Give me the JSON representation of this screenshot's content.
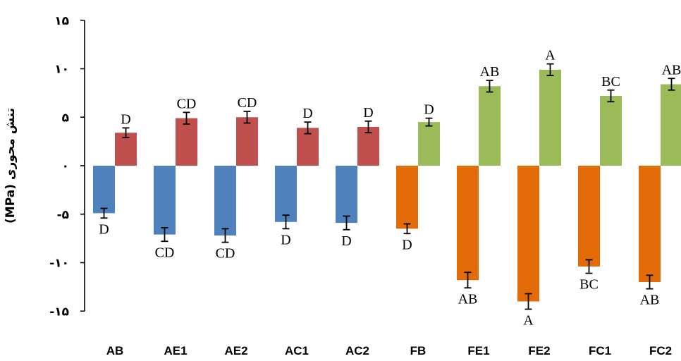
{
  "chart_data": {
    "type": "bar",
    "ylabel": "تنش محوری (MPa)",
    "ylim": [
      -15,
      15
    ],
    "y_ticks": [
      15,
      10,
      5,
      0,
      -5,
      -10,
      -15
    ],
    "y_tick_labels": [
      "۱۵",
      "۱۰",
      "۵",
      "۰",
      "-۵",
      "-۱۰",
      "-۱۵"
    ],
    "categories": [
      "AB",
      "AE1",
      "AE2",
      "AC1",
      "AC2",
      "FB",
      "FE1",
      "FE2",
      "FC1",
      "FC2"
    ],
    "bars": [
      {
        "category": "AB",
        "value": 3.4,
        "error": 0.5,
        "letter": "D",
        "color": "#c0504d"
      },
      {
        "category": "AE1",
        "value": 4.9,
        "error": 0.6,
        "letter": "CD",
        "color": "#c0504d"
      },
      {
        "category": "AE2",
        "value": 5.0,
        "error": 0.6,
        "letter": "CD",
        "color": "#c0504d"
      },
      {
        "category": "AC1",
        "value": 3.9,
        "error": 0.6,
        "letter": "D",
        "color": "#c0504d"
      },
      {
        "category": "AC2",
        "value": 4.0,
        "error": 0.6,
        "letter": "D",
        "color": "#c0504d"
      },
      {
        "category": "FB",
        "value": 4.5,
        "error": 0.4,
        "letter": "D",
        "color": "#9bbb59"
      },
      {
        "category": "FE1",
        "value": 8.2,
        "error": 0.6,
        "letter": "AB",
        "color": "#9bbb59"
      },
      {
        "category": "FE2",
        "value": 9.9,
        "error": 0.6,
        "letter": "A",
        "color": "#9bbb59"
      },
      {
        "category": "FC1",
        "value": 7.2,
        "error": 0.6,
        "letter": "BC",
        "color": "#9bbb59"
      },
      {
        "category": "FC2",
        "value": 8.4,
        "error": 0.6,
        "letter": "AB",
        "color": "#9bbb59"
      },
      {
        "category": "AB",
        "value": -4.9,
        "error": 0.5,
        "letter": "D",
        "color": "#4f81bd"
      },
      {
        "category": "AE1",
        "value": -7.1,
        "error": 0.7,
        "letter": "CD",
        "color": "#4f81bd"
      },
      {
        "category": "AE2",
        "value": -7.2,
        "error": 0.7,
        "letter": "CD",
        "color": "#4f81bd"
      },
      {
        "category": "AC1",
        "value": -5.8,
        "error": 0.7,
        "letter": "D",
        "color": "#4f81bd"
      },
      {
        "category": "AC2",
        "value": -5.9,
        "error": 0.7,
        "letter": "D",
        "color": "#4f81bd"
      },
      {
        "category": "FB",
        "value": -6.5,
        "error": 0.5,
        "letter": "D",
        "color": "#e36c09"
      },
      {
        "category": "FE1",
        "value": -11.8,
        "error": 0.8,
        "letter": "AB",
        "color": "#e36c09"
      },
      {
        "category": "FE2",
        "value": -14.0,
        "error": 0.8,
        "letter": "A",
        "color": "#e36c09"
      },
      {
        "category": "FC1",
        "value": -10.4,
        "error": 0.7,
        "letter": "BC",
        "color": "#e36c09"
      },
      {
        "category": "FC2",
        "value": -12.0,
        "error": 0.7,
        "letter": "AB",
        "color": "#e36c09"
      }
    ],
    "grid": false,
    "legend": "none"
  }
}
